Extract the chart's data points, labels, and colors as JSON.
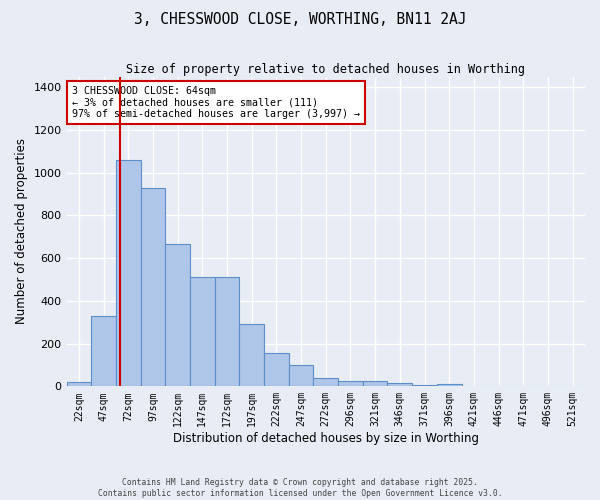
{
  "title": "3, CHESSWOOD CLOSE, WORTHING, BN11 2AJ",
  "subtitle": "Size of property relative to detached houses in Worthing",
  "xlabel": "Distribution of detached houses by size in Worthing",
  "ylabel": "Number of detached properties",
  "bar_color": "#aec6e8",
  "bar_edge_color": "#5b8fc9",
  "background_color": "#e8edf5",
  "grid_color": "#ffffff",
  "categories": [
    "22sqm",
    "47sqm",
    "72sqm",
    "97sqm",
    "122sqm",
    "147sqm",
    "172sqm",
    "197sqm",
    "222sqm",
    "247sqm",
    "272sqm",
    "296sqm",
    "321sqm",
    "346sqm",
    "371sqm",
    "396sqm",
    "421sqm",
    "446sqm",
    "471sqm",
    "496sqm",
    "521sqm"
  ],
  "values": [
    20,
    330,
    1060,
    930,
    665,
    510,
    510,
    290,
    155,
    100,
    40,
    25,
    25,
    15,
    7,
    10,
    0,
    0,
    0,
    0,
    0
  ],
  "red_line_x": 1.68,
  "annotation_text": "3 CHESSWOOD CLOSE: 64sqm\n← 3% of detached houses are smaller (111)\n97% of semi-detached houses are larger (3,997) →",
  "annotation_box_color": "#ffffff",
  "annotation_border_color": "#cc0000",
  "ylim": [
    0,
    1450
  ],
  "yticks": [
    0,
    200,
    400,
    600,
    800,
    1000,
    1200,
    1400
  ],
  "footer_line1": "Contains HM Land Registry data © Crown copyright and database right 2025.",
  "footer_line2": "Contains public sector information licensed under the Open Government Licence v3.0."
}
